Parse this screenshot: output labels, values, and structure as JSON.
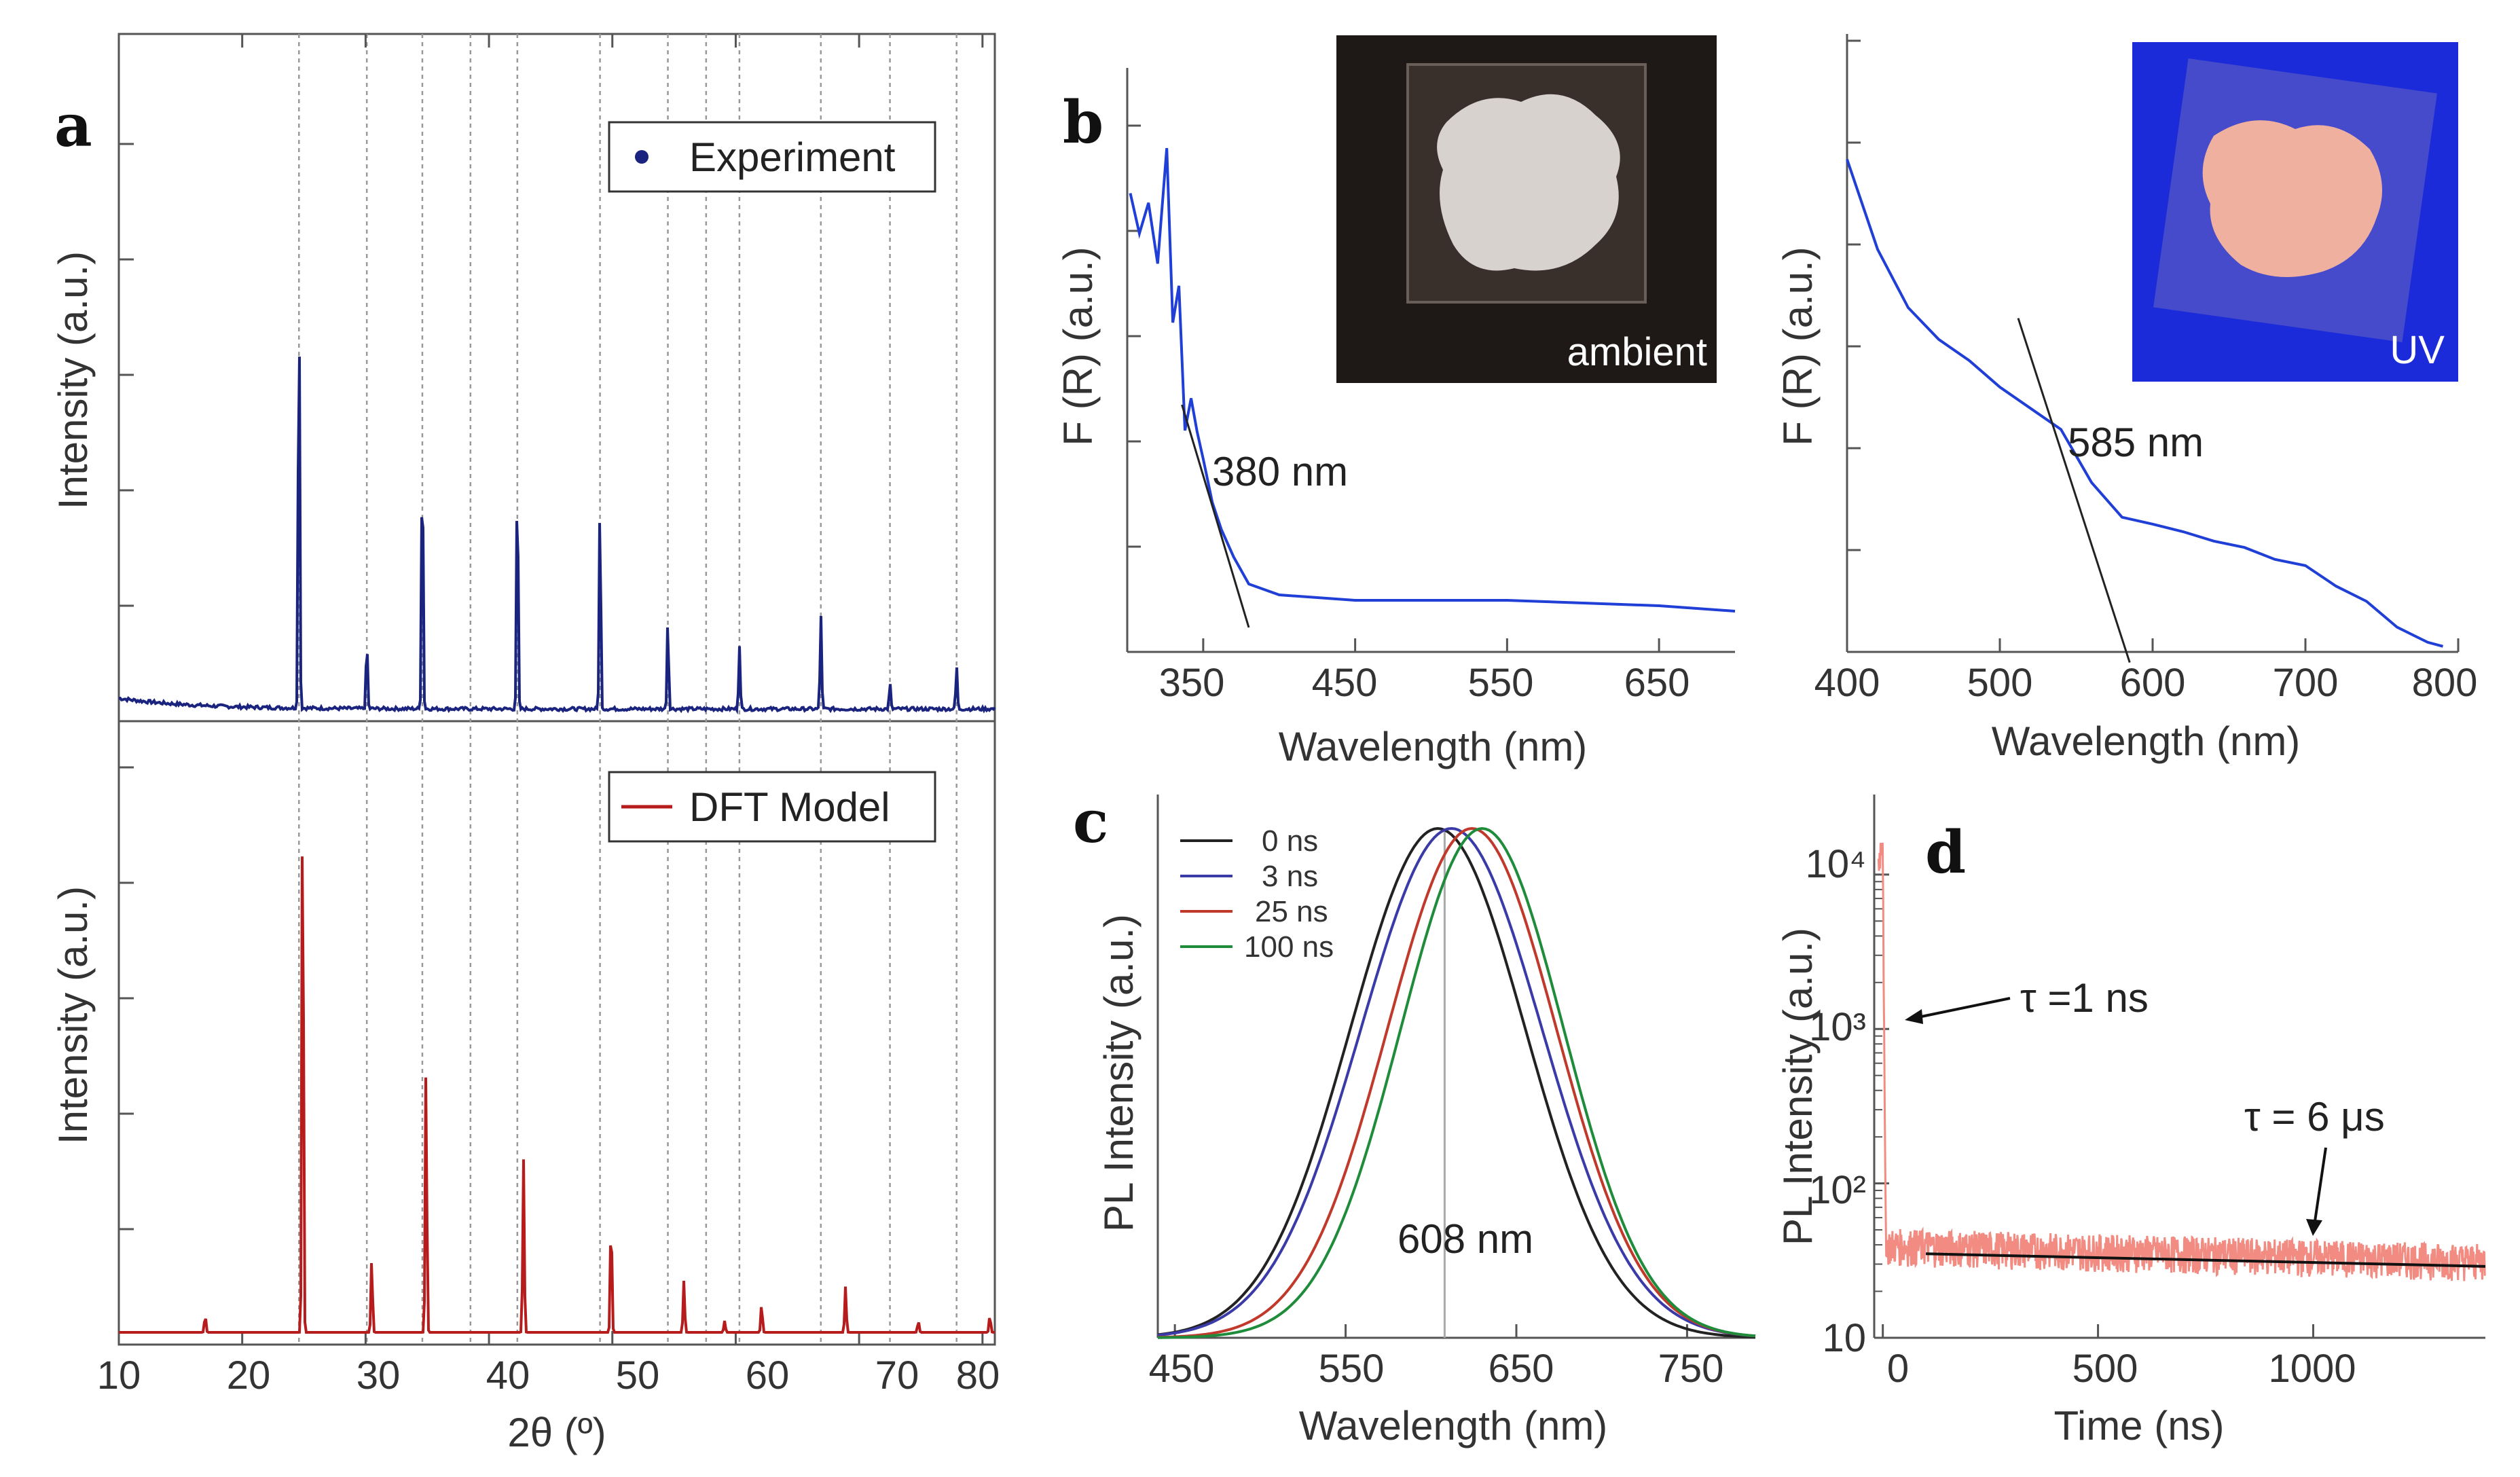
{
  "figure": {
    "panel_labels": [
      "a",
      "b",
      "c",
      "d"
    ]
  },
  "chart_data": [
    {
      "panel": "a",
      "type": "line",
      "subpanel": "top",
      "xlabel": "2θ (º)",
      "ylabel": "Intensity (a.u.)",
      "xlim": [
        10,
        81
      ],
      "x_ticks": [
        10,
        20,
        30,
        40,
        50,
        60,
        70,
        80
      ],
      "reference_lines_x": [
        24.6,
        30.1,
        34.6,
        38.5,
        42.3,
        49.0,
        54.5,
        57.6,
        60.3,
        66.9,
        72.5,
        77.9
      ],
      "legend": "Experiment",
      "series": [
        {
          "name": "Experiment",
          "color": "#1a237e",
          "peaks": [
            {
              "x": 24.6,
              "y": 1.0
            },
            {
              "x": 30.1,
              "y": 0.16
            },
            {
              "x": 34.6,
              "y": 0.63
            },
            {
              "x": 42.3,
              "y": 0.57
            },
            {
              "x": 49.0,
              "y": 0.49
            },
            {
              "x": 54.5,
              "y": 0.21
            },
            {
              "x": 60.3,
              "y": 0.15
            },
            {
              "x": 66.9,
              "y": 0.22
            },
            {
              "x": 72.5,
              "y": 0.06
            },
            {
              "x": 77.9,
              "y": 0.1
            }
          ]
        }
      ]
    },
    {
      "panel": "a",
      "type": "line",
      "subpanel": "bottom",
      "xlabel": "2θ (º)",
      "ylabel": "Intensity (a.u.)",
      "xlim": [
        10,
        81
      ],
      "legend": "DFT Model",
      "series": [
        {
          "name": "DFT Model",
          "color": "#b71c1c",
          "peaks": [
            {
              "x": 17.0,
              "y": 0.03
            },
            {
              "x": 24.9,
              "y": 1.0
            },
            {
              "x": 30.5,
              "y": 0.13
            },
            {
              "x": 34.9,
              "y": 0.47
            },
            {
              "x": 42.8,
              "y": 0.3
            },
            {
              "x": 49.9,
              "y": 0.21
            },
            {
              "x": 55.8,
              "y": 0.09
            },
            {
              "x": 59.1,
              "y": 0.02
            },
            {
              "x": 62.1,
              "y": 0.05
            },
            {
              "x": 68.9,
              "y": 0.08
            },
            {
              "x": 74.8,
              "y": 0.02
            },
            {
              "x": 80.6,
              "y": 0.03
            }
          ]
        }
      ]
    },
    {
      "panel": "b",
      "type": "line",
      "subpanel": "left",
      "xlabel": "Wavelength (nm)",
      "ylabel": "F (R) (a.u.)",
      "xlim": [
        300,
        700
      ],
      "x_ticks": [
        350,
        450,
        550,
        650
      ],
      "annotation": "380 nm",
      "inset_label": "ambient",
      "series": [
        {
          "name": "",
          "color": "#1f3fd6",
          "x": [
            302,
            308,
            314,
            320,
            326,
            330,
            334,
            338,
            342,
            346,
            350,
            356,
            362,
            370,
            380,
            400,
            450,
            500,
            550,
            600,
            650,
            700
          ],
          "y": [
            0.8,
            0.7,
            0.75,
            0.65,
            0.85,
            0.55,
            0.6,
            0.35,
            0.42,
            0.3,
            0.28,
            0.2,
            0.15,
            0.1,
            0.05,
            0.03,
            0.02,
            0.02,
            0.02,
            0.015,
            0.01,
            0.0
          ]
        }
      ],
      "tangent": {
        "x": [
          336,
          380
        ],
        "y": [
          0.38,
          -0.03
        ]
      }
    },
    {
      "panel": "b",
      "type": "line",
      "subpanel": "right",
      "xlabel": "Wavelength (nm)",
      "ylabel": "F (R) (a.u.)",
      "xlim": [
        400,
        800
      ],
      "x_ticks": [
        400,
        500,
        600,
        700,
        800
      ],
      "annotation": "585 nm",
      "inset_label": "UV",
      "series": [
        {
          "name": "",
          "color": "#1f3fd6",
          "x": [
            400,
            420,
            440,
            460,
            480,
            500,
            520,
            540,
            560,
            580,
            600,
            620,
            640,
            660,
            680,
            700,
            720,
            740,
            760,
            780,
            790
          ],
          "y": [
            0.93,
            0.76,
            0.65,
            0.59,
            0.55,
            0.5,
            0.46,
            0.42,
            0.32,
            0.26,
            0.24,
            0.22,
            0.21,
            0.19,
            0.18,
            0.16,
            0.12,
            0.09,
            0.05,
            0.02,
            0.01
          ]
        }
      ],
      "tangent": {
        "x": [
          512,
          585
        ],
        "y": [
          0.63,
          -0.02
        ]
      }
    },
    {
      "panel": "c",
      "type": "line",
      "xlabel": "Wavelength (nm)",
      "ylabel": "PL Intensity (a.u.)",
      "xlim": [
        440,
        790
      ],
      "x_ticks": [
        450,
        550,
        650,
        750
      ],
      "annotation": "608 nm",
      "marker_x": 608,
      "series": [
        {
          "name": "0 ns",
          "color": "#222222",
          "center": 604,
          "width": 58
        },
        {
          "name": "3 ns",
          "color": "#3a3aa8",
          "center": 612,
          "width": 60
        },
        {
          "name": "25 ns",
          "color": "#c0392b",
          "center": 624,
          "width": 56
        },
        {
          "name": "100 ns",
          "color": "#1e8c3a",
          "center": 630,
          "width": 54
        }
      ]
    },
    {
      "panel": "d",
      "type": "line",
      "xlabel": "Time (ns)",
      "ylabel": "PL Intensity (a.u.)",
      "yscale": "log",
      "xlim": [
        -20,
        1400
      ],
      "ylim": [
        10,
        22000
      ],
      "x_ticks": [
        0,
        500,
        1000
      ],
      "y_ticks": [
        "10",
        "10²",
        "10³",
        "10⁴"
      ],
      "annotations": [
        "τ =1 ns",
        "τ = 6 μs"
      ],
      "series": [
        {
          "name": "",
          "color": "#f28b82",
          "decay": "fast 1 ns + slow 6 μs with noise"
        }
      ],
      "fit": {
        "x": [
          100,
          1400
        ],
        "y": [
          35,
          29
        ]
      }
    }
  ],
  "labels": {
    "a": {
      "xlabel": "2θ (º)",
      "ylabel_top": "Intensity (a.u.)",
      "ylabel_bottom": "Intensity (a.u.)",
      "legend_top": "Experiment",
      "legend_bottom": "DFT Model",
      "ticks": [
        "10",
        "20",
        "30",
        "40",
        "50",
        "60",
        "70",
        "80"
      ]
    },
    "b": {
      "xlabel_left": "Wavelength (nm)",
      "xlabel_right": "Wavelength (nm)",
      "ylabel_left": "F (R) (a.u.)",
      "ylabel_right": "F (R) (a.u.)",
      "annot_left": "380 nm",
      "annot_right": "585 nm",
      "inset_left": "ambient",
      "inset_right": "UV",
      "ticks_left": [
        "350",
        "450",
        "550",
        "650"
      ],
      "ticks_right": [
        "400",
        "500",
        "600",
        "700",
        "800"
      ]
    },
    "c": {
      "xlabel": "Wavelength (nm)",
      "ylabel": "PL Intensity (a.u.)",
      "annot": "608 nm",
      "legend": [
        "0 ns",
        "3 ns",
        "25 ns",
        "100 ns"
      ],
      "ticks": [
        "450",
        "550",
        "650",
        "750"
      ]
    },
    "d": {
      "xlabel": "Time (ns)",
      "ylabel": "PL Intensity (a.u.)",
      "annot1": "τ =1 ns",
      "annot2": "τ = 6 μs",
      "xticks": [
        "0",
        "500",
        "1000"
      ],
      "yticks": [
        "10",
        "10²",
        "10³",
        "10⁴"
      ]
    }
  },
  "colors": {
    "experiment": "#1a237e",
    "dft": "#b71c1c",
    "uvvis": "#1f3fd6",
    "pl_decay": "#f28b82",
    "grid_ref": "#888888"
  }
}
